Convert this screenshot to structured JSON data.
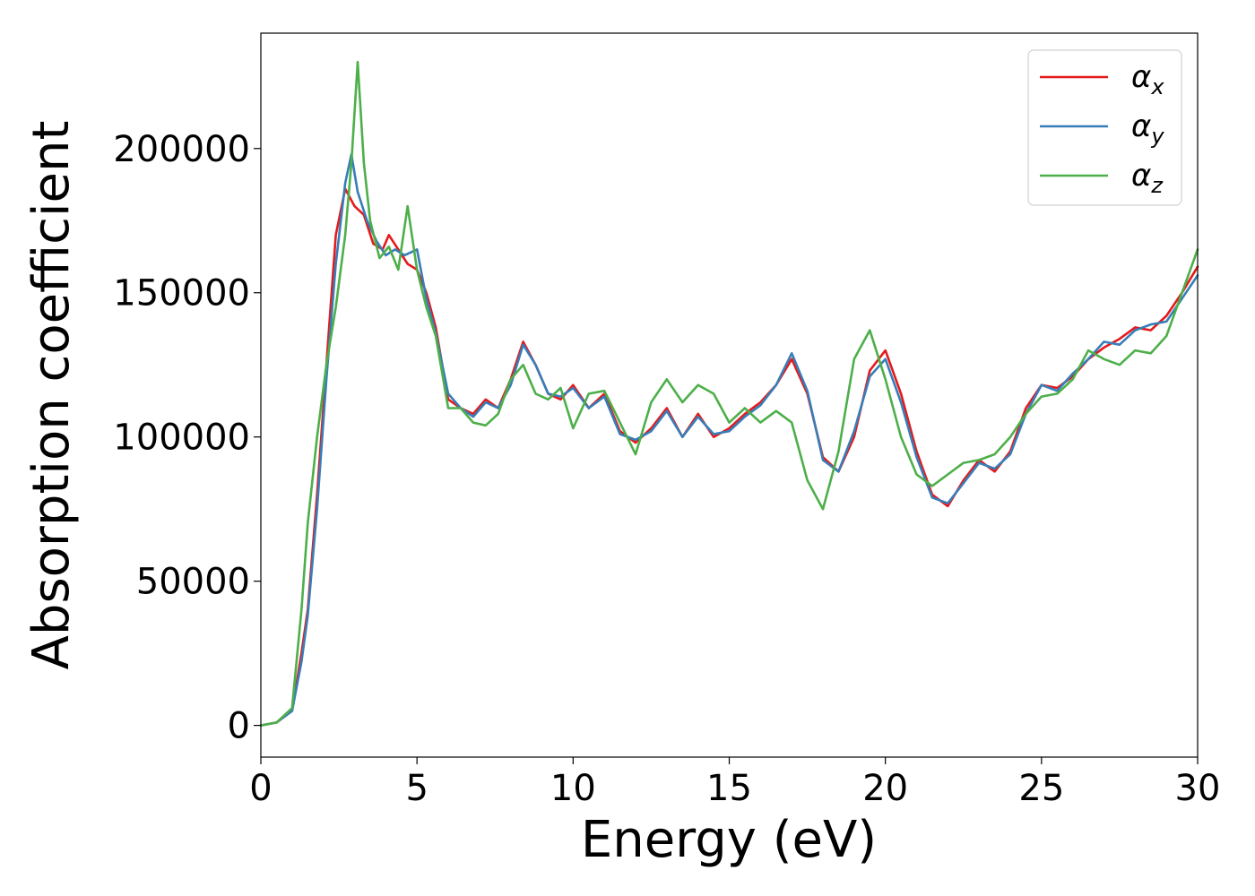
{
  "chart_data": {
    "type": "line",
    "xlabel": "Energy (eV)",
    "ylabel": "Absorption coefficient",
    "xlim": [
      0,
      30
    ],
    "ylim": [
      -11000,
      240000
    ],
    "xticks": [
      0,
      5,
      10,
      15,
      20,
      25,
      30
    ],
    "xtick_labels": [
      "0",
      "5",
      "10",
      "15",
      "20",
      "25",
      "30"
    ],
    "yticks": [
      0,
      50000,
      100000,
      150000,
      200000
    ],
    "ytick_labels": [
      "0",
      "50000",
      "100000",
      "150000",
      "200000"
    ],
    "grid": false,
    "legend_position": "top-right",
    "series": [
      {
        "name": "αx",
        "label_main": "α",
        "label_sub": "x",
        "color": "#e41a1c",
        "x": [
          0,
          0.5,
          1,
          1.3,
          1.5,
          1.8,
          2.1,
          2.4,
          2.7,
          3.0,
          3.3,
          3.6,
          3.9,
          4.1,
          4.4,
          4.7,
          5.0,
          5.3,
          5.6,
          6.0,
          6.4,
          6.8,
          7.2,
          7.6,
          8.0,
          8.4,
          8.8,
          9.2,
          9.6,
          10.0,
          10.5,
          11.0,
          11.5,
          12.0,
          12.5,
          13.0,
          13.5,
          14.0,
          14.5,
          15.0,
          15.5,
          16.0,
          16.5,
          17.0,
          17.5,
          18.0,
          18.5,
          19.0,
          19.5,
          20.0,
          20.5,
          21.0,
          21.5,
          22.0,
          22.5,
          23.0,
          23.5,
          24.0,
          24.5,
          25.0,
          25.5,
          26.0,
          26.5,
          27.0,
          27.5,
          28.0,
          28.5,
          29.0,
          29.5,
          30.0
        ],
        "y": [
          0,
          1000,
          5000,
          25000,
          40000,
          80000,
          125000,
          170000,
          186000,
          180000,
          177000,
          167000,
          165000,
          170000,
          165000,
          160000,
          158000,
          150000,
          138000,
          113000,
          110000,
          108000,
          113000,
          110000,
          120000,
          133000,
          125000,
          115000,
          113000,
          118000,
          110000,
          115000,
          102000,
          98000,
          103000,
          110000,
          100000,
          108000,
          100000,
          103000,
          108000,
          112000,
          118000,
          127000,
          115000,
          93000,
          88000,
          100000,
          123000,
          130000,
          115000,
          95000,
          80000,
          76000,
          85000,
          92000,
          88000,
          95000,
          110000,
          118000,
          117000,
          121000,
          127000,
          131000,
          134000,
          138000,
          137000,
          142000,
          150000,
          159000
        ]
      },
      {
        "name": "αy",
        "label_main": "α",
        "label_sub": "y",
        "color": "#377eb8",
        "x": [
          0,
          0.5,
          1,
          1.3,
          1.5,
          1.8,
          2.1,
          2.4,
          2.7,
          2.9,
          3.1,
          3.4,
          3.7,
          4.0,
          4.3,
          4.6,
          5.0,
          5.3,
          5.6,
          6.0,
          6.4,
          6.8,
          7.2,
          7.6,
          8.0,
          8.4,
          8.8,
          9.2,
          9.6,
          10.0,
          10.5,
          11.0,
          11.5,
          12.0,
          12.5,
          13.0,
          13.5,
          14.0,
          14.5,
          15.0,
          15.5,
          16.0,
          16.5,
          17.0,
          17.5,
          18.0,
          18.5,
          19.0,
          19.5,
          20.0,
          20.5,
          21.0,
          21.5,
          22.0,
          22.5,
          23.0,
          23.5,
          24.0,
          24.5,
          25.0,
          25.5,
          26.0,
          26.5,
          27.0,
          27.5,
          28.0,
          28.5,
          29.0,
          29.5,
          30.0
        ],
        "y": [
          0,
          1000,
          5000,
          22000,
          38000,
          75000,
          120000,
          160000,
          188000,
          198000,
          185000,
          175000,
          168000,
          163000,
          165000,
          163000,
          165000,
          148000,
          136000,
          115000,
          110000,
          107000,
          112000,
          110000,
          118000,
          132000,
          125000,
          115000,
          114000,
          117000,
          110000,
          114000,
          101000,
          99000,
          102000,
          109000,
          100000,
          107000,
          101000,
          102000,
          107000,
          111000,
          118000,
          129000,
          116000,
          92000,
          88000,
          102000,
          121000,
          127000,
          112000,
          93000,
          79000,
          77000,
          84000,
          91000,
          89000,
          94000,
          108000,
          118000,
          116000,
          122000,
          127000,
          133000,
          132000,
          137000,
          139000,
          140000,
          148000,
          156000
        ]
      },
      {
        "name": "αz",
        "label_main": "α",
        "label_sub": "z",
        "color": "#4daf4a",
        "x": [
          0,
          0.5,
          1,
          1.3,
          1.5,
          1.8,
          2.1,
          2.4,
          2.7,
          2.9,
          3.1,
          3.3,
          3.5,
          3.8,
          4.1,
          4.4,
          4.7,
          5.0,
          5.3,
          5.6,
          6.0,
          6.4,
          6.8,
          7.2,
          7.6,
          8.0,
          8.4,
          8.8,
          9.2,
          9.6,
          10.0,
          10.5,
          11.0,
          11.5,
          12.0,
          12.5,
          13.0,
          13.5,
          14.0,
          14.5,
          15.0,
          15.5,
          16.0,
          16.5,
          17.0,
          17.5,
          18.0,
          18.5,
          19.0,
          19.5,
          20.0,
          20.5,
          21.0,
          21.5,
          22.0,
          22.5,
          23.0,
          23.5,
          24.0,
          24.5,
          25.0,
          25.5,
          26.0,
          26.5,
          27.0,
          27.5,
          28.0,
          28.5,
          29.0,
          29.5,
          30.0
        ],
        "y": [
          0,
          1000,
          6000,
          40000,
          70000,
          100000,
          125000,
          145000,
          170000,
          195000,
          230000,
          195000,
          175000,
          162000,
          166000,
          158000,
          180000,
          158000,
          145000,
          135000,
          110000,
          110000,
          105000,
          104000,
          108000,
          120000,
          125000,
          115000,
          113000,
          117000,
          103000,
          115000,
          116000,
          105000,
          94000,
          112000,
          120000,
          112000,
          118000,
          115000,
          105000,
          110000,
          105000,
          109000,
          105000,
          85000,
          75000,
          95000,
          127000,
          137000,
          120000,
          100000,
          87000,
          83000,
          87000,
          91000,
          92000,
          94000,
          100000,
          108000,
          114000,
          115000,
          120000,
          130000,
          127000,
          125000,
          130000,
          129000,
          135000,
          150000,
          165000
        ]
      }
    ]
  }
}
